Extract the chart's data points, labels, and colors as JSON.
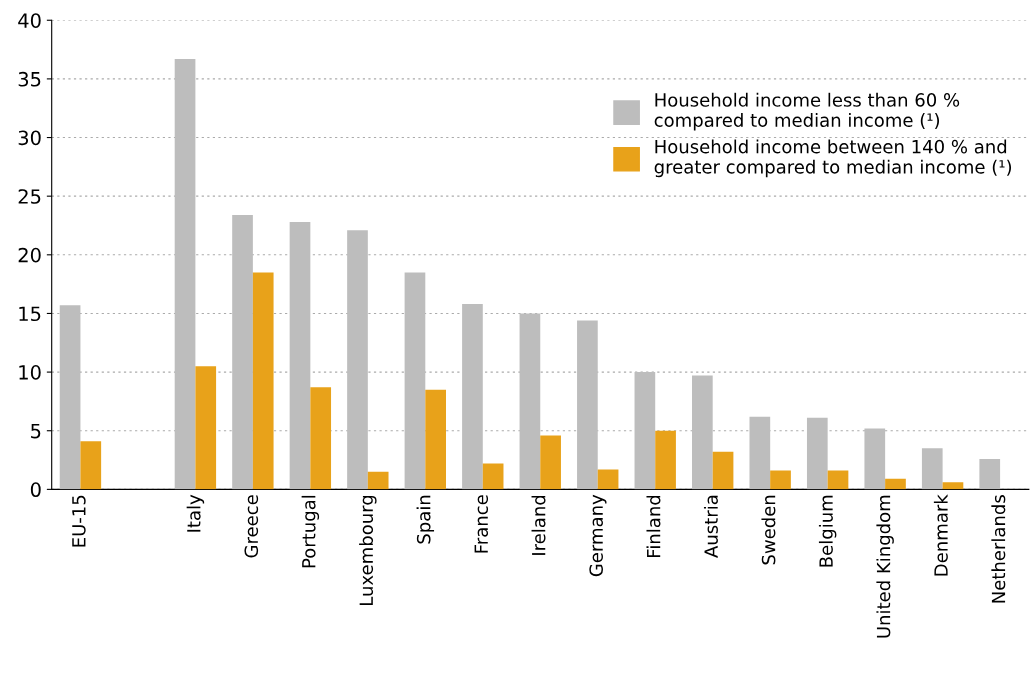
{
  "chart_data": {
    "type": "bar",
    "categories": [
      "EU-15",
      null,
      "Italy",
      "Greece",
      "Portugal",
      "Luxembourg",
      "Spain",
      "France",
      "Ireland",
      "Germany",
      "Finland",
      "Austria",
      "Sweden",
      "Belgium",
      "United Kingdom",
      "Denmark",
      "Netherlands"
    ],
    "series": [
      {
        "name": "Household income less than 60 % compared to median income (¹)",
        "color": "#bdbdbd",
        "values": [
          15.7,
          null,
          36.7,
          23.4,
          22.8,
          22.1,
          18.5,
          15.8,
          15.0,
          14.4,
          10.0,
          9.7,
          6.2,
          6.1,
          5.2,
          3.5,
          2.6
        ]
      },
      {
        "name": "Household income between 140 % and greater compared to median income (¹)",
        "color": "#e8a21a",
        "values": [
          4.1,
          null,
          10.5,
          18.5,
          8.7,
          1.5,
          8.5,
          2.2,
          4.6,
          1.7,
          5.0,
          3.2,
          1.6,
          1.6,
          0.9,
          0.6,
          null
        ]
      }
    ],
    "ylim": [
      0,
      40
    ],
    "yticks": [
      0,
      5,
      10,
      15,
      20,
      25,
      30,
      35,
      40
    ],
    "grid": "y",
    "legend": "top right"
  }
}
